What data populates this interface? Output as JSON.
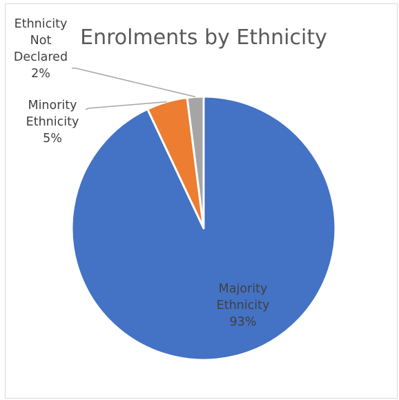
{
  "chart_data": {
    "type": "pie",
    "title": "Enrolments by Ethnicity",
    "slices": [
      {
        "name": "Majority Ethnicity",
        "value": 93,
        "label_lines": [
          "Majority",
          "Ethnicity",
          "93%"
        ],
        "color": "#4472c4"
      },
      {
        "name": "Minority Ethnicity",
        "value": 5,
        "label_lines": [
          "Minority",
          "Ethnicity",
          "5%"
        ],
        "color": "#ed7d31"
      },
      {
        "name": "Ethnicity Not Declared",
        "value": 2,
        "label_lines": [
          "Ethnicity",
          "Not",
          "Declared",
          "2%"
        ],
        "color": "#a5a5a5"
      }
    ],
    "legend": "none",
    "start_angle": "12 o'clock, clockwise"
  }
}
